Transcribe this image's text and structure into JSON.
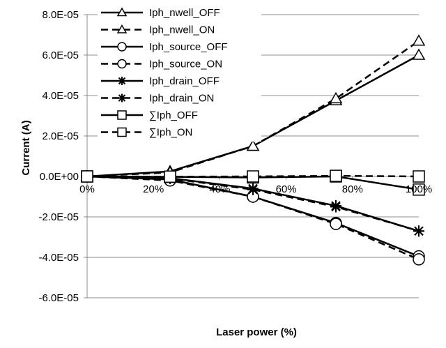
{
  "chart_data": {
    "type": "line",
    "title": "",
    "xlabel": "Laser power (%)",
    "ylabel": "Current (A)",
    "x": [
      0,
      25,
      50,
      75,
      100
    ],
    "x_tick_labels": [
      "0%",
      "20%",
      "40%",
      "60%",
      "80%",
      "100%"
    ],
    "x_ticks": [
      0,
      20,
      40,
      60,
      80,
      100
    ],
    "xlim": [
      0,
      100
    ],
    "y_tick_labels": [
      "8.0E-05",
      "6.0E-05",
      "4.0E-05",
      "2.0E-05",
      "0.0E+00",
      "-2.0E-05",
      "-4.0E-05",
      "-6.0E-05"
    ],
    "y_ticks": [
      8e-05,
      6e-05,
      4e-05,
      2e-05,
      0,
      -2e-05,
      -4e-05,
      -6e-05
    ],
    "ylim": [
      -6e-05,
      8e-05
    ],
    "grid": "horizontal",
    "legend": "top-left",
    "series": [
      {
        "name": "Iph_nwell_OFF",
        "marker": "triangle",
        "dash": "solid",
        "values": [
          0,
          2.5e-06,
          1.5e-05,
          3.75e-05,
          6e-05
        ]
      },
      {
        "name": "Iph_nwell_ON",
        "marker": "triangle",
        "dash": "dashed",
        "values": [
          0,
          2e-06,
          1.5e-05,
          3.85e-05,
          6.7e-05
        ]
      },
      {
        "name": "Iph_source_OFF",
        "marker": "circle",
        "dash": "solid",
        "values": [
          0,
          -1.5e-06,
          -1e-05,
          -2.3e-05,
          -3.95e-05
        ]
      },
      {
        "name": "Iph_source_ON",
        "marker": "circle",
        "dash": "dashed",
        "values": [
          0,
          -2e-06,
          -1e-05,
          -2.35e-05,
          -4.1e-05
        ]
      },
      {
        "name": "Iph_drain_OFF",
        "marker": "star",
        "dash": "solid",
        "values": [
          0,
          -8e-07,
          -6e-06,
          -1.45e-05,
          -2.7e-05
        ]
      },
      {
        "name": "Iph_drain_ON",
        "marker": "star",
        "dash": "dashed",
        "values": [
          0,
          -1e-06,
          -6.5e-06,
          -1.5e-05,
          -2.7e-05
        ]
      },
      {
        "name": "∑Iph_OFF",
        "marker": "square",
        "dash": "solid",
        "values": [
          0,
          -2e-07,
          -5e-07,
          0,
          -6.5e-06
        ]
      },
      {
        "name": "∑Iph_ON",
        "marker": "square",
        "dash": "dashed",
        "values": [
          0,
          -1e-07,
          0,
          3e-07,
          0
        ]
      }
    ]
  }
}
